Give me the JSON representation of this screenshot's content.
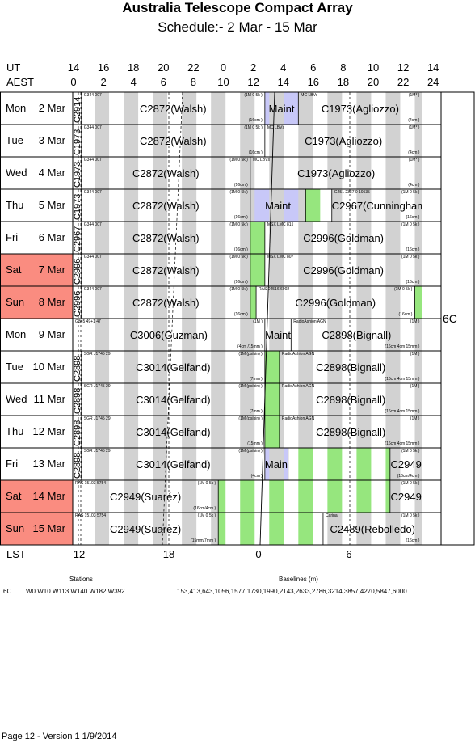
{
  "title": "Australia Telescope Compact Array",
  "subtitle": "Schedule:- 2  Mar - 15 Mar",
  "axes": {
    "ut_label": "UT",
    "aest_label": "AEST",
    "lst_label": "LST",
    "ut_ticks": [
      "14",
      "16",
      "18",
      "20",
      "22",
      "0",
      "2",
      "4",
      "6",
      "8",
      "10",
      "12",
      "14"
    ],
    "aest_ticks": [
      "0",
      "2",
      "4",
      "6",
      "8",
      "10",
      "12",
      "14",
      "16",
      "18",
      "20",
      "22",
      "24"
    ],
    "lst_ticks": [
      "12",
      "18",
      "0",
      "6"
    ]
  },
  "config": "6C",
  "colors": {
    "weekend": "#fa8c80",
    "green": "#96e67e",
    "lavender": "#c8c8f8",
    "stripe": "#d2d2d2"
  },
  "days": [
    {
      "weekday": "Mon",
      "date": "2 Mar",
      "weekend": false
    },
    {
      "weekday": "Tue",
      "date": "3 Mar",
      "weekend": false
    },
    {
      "weekday": "Wed",
      "date": "4 Mar",
      "weekend": false
    },
    {
      "weekday": "Thu",
      "date": "5 Mar",
      "weekend": false
    },
    {
      "weekday": "Fri",
      "date": "6 Mar",
      "weekend": false
    },
    {
      "weekday": "Sat",
      "date": "7 Mar",
      "weekend": true
    },
    {
      "weekday": "Sun",
      "date": "8 Mar",
      "weekend": true
    },
    {
      "weekday": "Mon",
      "date": "9 Mar",
      "weekend": false
    },
    {
      "weekday": "Tue",
      "date": "10 Mar",
      "weekend": false
    },
    {
      "weekday": "Wed",
      "date": "11 Mar",
      "weekend": false
    },
    {
      "weekday": "Thu",
      "date": "12 Mar",
      "weekend": false
    },
    {
      "weekday": "Fri",
      "date": "13 Mar",
      "weekend": false
    },
    {
      "weekday": "Sat",
      "date": "14 Mar",
      "weekend": true
    },
    {
      "weekday": "Sun",
      "date": "15 Mar",
      "weekend": true
    }
  ],
  "blocks": [
    {
      "row": 0,
      "start": 13.5,
      "end": 14.1,
      "vertical": "C2914"
    },
    {
      "row": 0,
      "start": 14.1,
      "end": 26.7,
      "label": "C2872(Walsh)",
      "source": "G344 007",
      "cfg": "(1M 0 5k )",
      "band": "(16cm )"
    },
    {
      "row": 0,
      "start": 26.7,
      "end": 29.0,
      "label": "Maint",
      "fill": "lavender"
    },
    {
      "row": 0,
      "start": 29.0,
      "end": 37.5,
      "label": "C1973(Agliozzo)",
      "source": "MC LBVs",
      "cfg": "(1M* )",
      "band": "(4cm )"
    },
    {
      "row": 1,
      "start": 13.5,
      "end": 14.1,
      "vertical": "C1973"
    },
    {
      "row": 1,
      "start": 14.1,
      "end": 26.7,
      "label": "C2872(Walsh)",
      "source": "G344 007",
      "cfg": "(1M 0 5k )",
      "band": "(16cm )"
    },
    {
      "row": 1,
      "start": 26.7,
      "end": 37.5,
      "label": "C1973(Agliozzo)",
      "source": "MC LBVs",
      "cfg": "(1M* )",
      "band": "(4cm )"
    },
    {
      "row": 2,
      "start": 13.5,
      "end": 14.1,
      "vertical": "C1973"
    },
    {
      "row": 2,
      "start": 14.1,
      "end": 25.7,
      "label": "C2872(Walsh)",
      "source": "G344 007",
      "cfg": "(1M 0 5k )",
      "band": "(16cm )"
    },
    {
      "row": 2,
      "start": 25.7,
      "end": 37.5,
      "label": "C1973(Agliozzo)",
      "source": "MC LBVs",
      "cfg": "(1M* )",
      "band": "(4cm )"
    },
    {
      "row": 3,
      "start": 13.5,
      "end": 14.1,
      "vertical": "C1973"
    },
    {
      "row": 3,
      "start": 14.1,
      "end": 25.7,
      "label": "C2872(Walsh)",
      "source": "G344 007",
      "cfg": "(1M 0 5k )",
      "band": "(16cm )"
    },
    {
      "row": 3,
      "start": 25.7,
      "end": 29.5,
      "label": "Maint",
      "fill": "lavender"
    },
    {
      "row": 3,
      "start": 29.5,
      "end": 30.5,
      "fill": "green"
    },
    {
      "row": 3,
      "start": 31.3,
      "end": 37.5,
      "label": "C2967(Cunningham)",
      "source": "G251 2337 0 19535",
      "cfg": "(1M 0 5k )",
      "band": "(16cm )"
    },
    {
      "row": 4,
      "start": 13.5,
      "end": 14.1,
      "vertical": "C2967"
    },
    {
      "row": 4,
      "start": 14.1,
      "end": 25.7,
      "label": "C2872(Walsh)",
      "source": "G344 007",
      "cfg": "(1M 0 5k )",
      "band": "(16cm )"
    },
    {
      "row": 4,
      "start": 25.7,
      "end": 26.7,
      "fill": "green"
    },
    {
      "row": 4,
      "start": 26.7,
      "end": 37.5,
      "label": "C2996(Goldman)",
      "source": "MSX LMC 815",
      "cfg": "(1M 0 5k )",
      "band": "(16cm )"
    },
    {
      "row": 5,
      "start": 13.5,
      "end": 14.1,
      "vertical": "C2996"
    },
    {
      "row": 5,
      "start": 14.1,
      "end": 25.7,
      "label": "C2872(Walsh)",
      "source": "G344 007",
      "cfg": "(1M 0 5k )",
      "band": "(16cm )"
    },
    {
      "row": 5,
      "start": 25.7,
      "end": 26.7,
      "fill": "green"
    },
    {
      "row": 5,
      "start": 26.7,
      "end": 37.5,
      "label": "C2996(Goldman)",
      "source": "MSX LMC 807",
      "cfg": "(1M 0 5k )",
      "band": "(16cm )"
    },
    {
      "row": 6,
      "start": 13.5,
      "end": 14.1,
      "vertical": "C2996"
    },
    {
      "row": 6,
      "start": 14.1,
      "end": 25.7,
      "label": "C2872(Walsh)",
      "source": "G344 007",
      "cfg": "(1M 0 5k )",
      "band": "(16cm )"
    },
    {
      "row": 6,
      "start": 25.7,
      "end": 26.1,
      "fill": "green"
    },
    {
      "row": 6,
      "start": 26.1,
      "end": 37.0,
      "label": "C2996(Goldman)",
      "source": "RAS 04516 6902",
      "cfg": "(1M 0 5k )",
      "band": "(16cm )"
    },
    {
      "row": 6,
      "start": 37.0,
      "end": 37.5,
      "fill": "green"
    },
    {
      "row": 7,
      "start": 13.5,
      "end": 26.7,
      "label": "C3006(Guzman)",
      "source": "G345 49+1 47",
      "cfg": "(1M )",
      "band": "(4cm /15mm )"
    },
    {
      "row": 7,
      "start": 26.7,
      "end": 28.5,
      "label": "Maint"
    },
    {
      "row": 7,
      "start": 28.5,
      "end": 37.5,
      "label": "C2898(Bignall)",
      "source": "RadioAshion AGN",
      "cfg": "(1M )",
      "band": "(16cm 4cm 15mm )"
    },
    {
      "row": 8,
      "start": 13.5,
      "end": 14.1,
      "vertical": "C2898"
    },
    {
      "row": 8,
      "start": 14.1,
      "end": 26.7,
      "label": "C3014(Gelfand)",
      "source": "SGR J1745 29",
      "cfg": "(1M (psibin) )",
      "band": "(7mm )"
    },
    {
      "row": 8,
      "start": 26.7,
      "end": 27.7,
      "fill": "green"
    },
    {
      "row": 8,
      "start": 27.7,
      "end": 37.5,
      "label": "C2898(Bignall)",
      "source": "RadioAshion AGN",
      "cfg": "(1M )",
      "band": "(16cm 4cm 15mm )"
    },
    {
      "row": 9,
      "start": 13.5,
      "end": 14.1,
      "vertical": "C2898"
    },
    {
      "row": 9,
      "start": 14.1,
      "end": 26.7,
      "label": "C3014(Gelfand)",
      "source": "SGR J1745 29",
      "cfg": "(1M (psibin) )",
      "band": "(7mm )"
    },
    {
      "row": 9,
      "start": 26.7,
      "end": 27.7,
      "fill": "green"
    },
    {
      "row": 9,
      "start": 27.7,
      "end": 37.5,
      "label": "C2898(Bignall)",
      "source": "RadioAshion AGN",
      "cfg": "(1M )",
      "band": "(16cm 4cm 15mm )"
    },
    {
      "row": 10,
      "start": 13.5,
      "end": 14.1,
      "vertical": "C2898"
    },
    {
      "row": 10,
      "start": 14.1,
      "end": 26.7,
      "label": "C3014(Gelfand)",
      "source": "SGR J1745 29",
      "cfg": "(1M (psibin) )",
      "band": "(15mm )"
    },
    {
      "row": 10,
      "start": 26.7,
      "end": 27.7,
      "fill": "green"
    },
    {
      "row": 10,
      "start": 27.7,
      "end": 37.5,
      "label": "C2898(Bignall)",
      "source": "RadioAshion AGN",
      "cfg": "(1M )",
      "band": "(16cm 4cm 15mm )"
    },
    {
      "row": 11,
      "start": 13.5,
      "end": 14.1,
      "vertical": "C2898"
    },
    {
      "row": 11,
      "start": 14.1,
      "end": 26.7,
      "label": "C3014(Gelfand)",
      "source": "SGR J1745 29",
      "cfg": "(1M (psibin) )",
      "band": "(4cm )"
    },
    {
      "row": 11,
      "start": 26.7,
      "end": 28.3,
      "label": "Maint",
      "fill": "lavender"
    },
    {
      "row": 11,
      "start": 28.3,
      "end": 35.3,
      "stripes": true
    },
    {
      "row": 11,
      "start": 35.3,
      "end": 37.5,
      "label": "C2949",
      "cfg": "(1M 0 5k )",
      "band": "(16cm/4cm )"
    },
    {
      "row": 12,
      "start": 13.5,
      "end": 23.5,
      "label": "C2949(Suaréz)",
      "source": "RAS 15103 5754",
      "cfg": "(1M 0 5k )",
      "band": "(16cm/4cm )"
    },
    {
      "row": 12,
      "start": 23.5,
      "end": 35.3,
      "stripes": true
    },
    {
      "row": 12,
      "start": 35.3,
      "end": 37.5,
      "label": "C2949",
      "cfg": "(1M 0 5k )"
    },
    {
      "row": 13,
      "start": 13.5,
      "end": 23.5,
      "label": "C2949(Suarez)",
      "source": "RAS 15103 5754",
      "cfg": "(1M 0 5k )",
      "band": "(15mm/7mm )"
    },
    {
      "row": 13,
      "start": 23.5,
      "end": 30.7,
      "stripes": true
    },
    {
      "row": 13,
      "start": 30.7,
      "end": 37.5,
      "label": "C2489(Rebolledo)",
      "source": "Carina",
      "cfg": "(1M 0 5k )",
      "band": "(16cm )"
    }
  ],
  "stations_title": "Stations",
  "baselines_title": "Baselines (m)",
  "stations_config": "6C",
  "stations": "W0 W10 W113 W140 W182 W392",
  "baselines": "153,413,643,1056,1577,1730,1990,2143,2633,2786,3214,3857,4270,5847,6000",
  "footer": "Page 12 - Version 1  1/9/2014"
}
